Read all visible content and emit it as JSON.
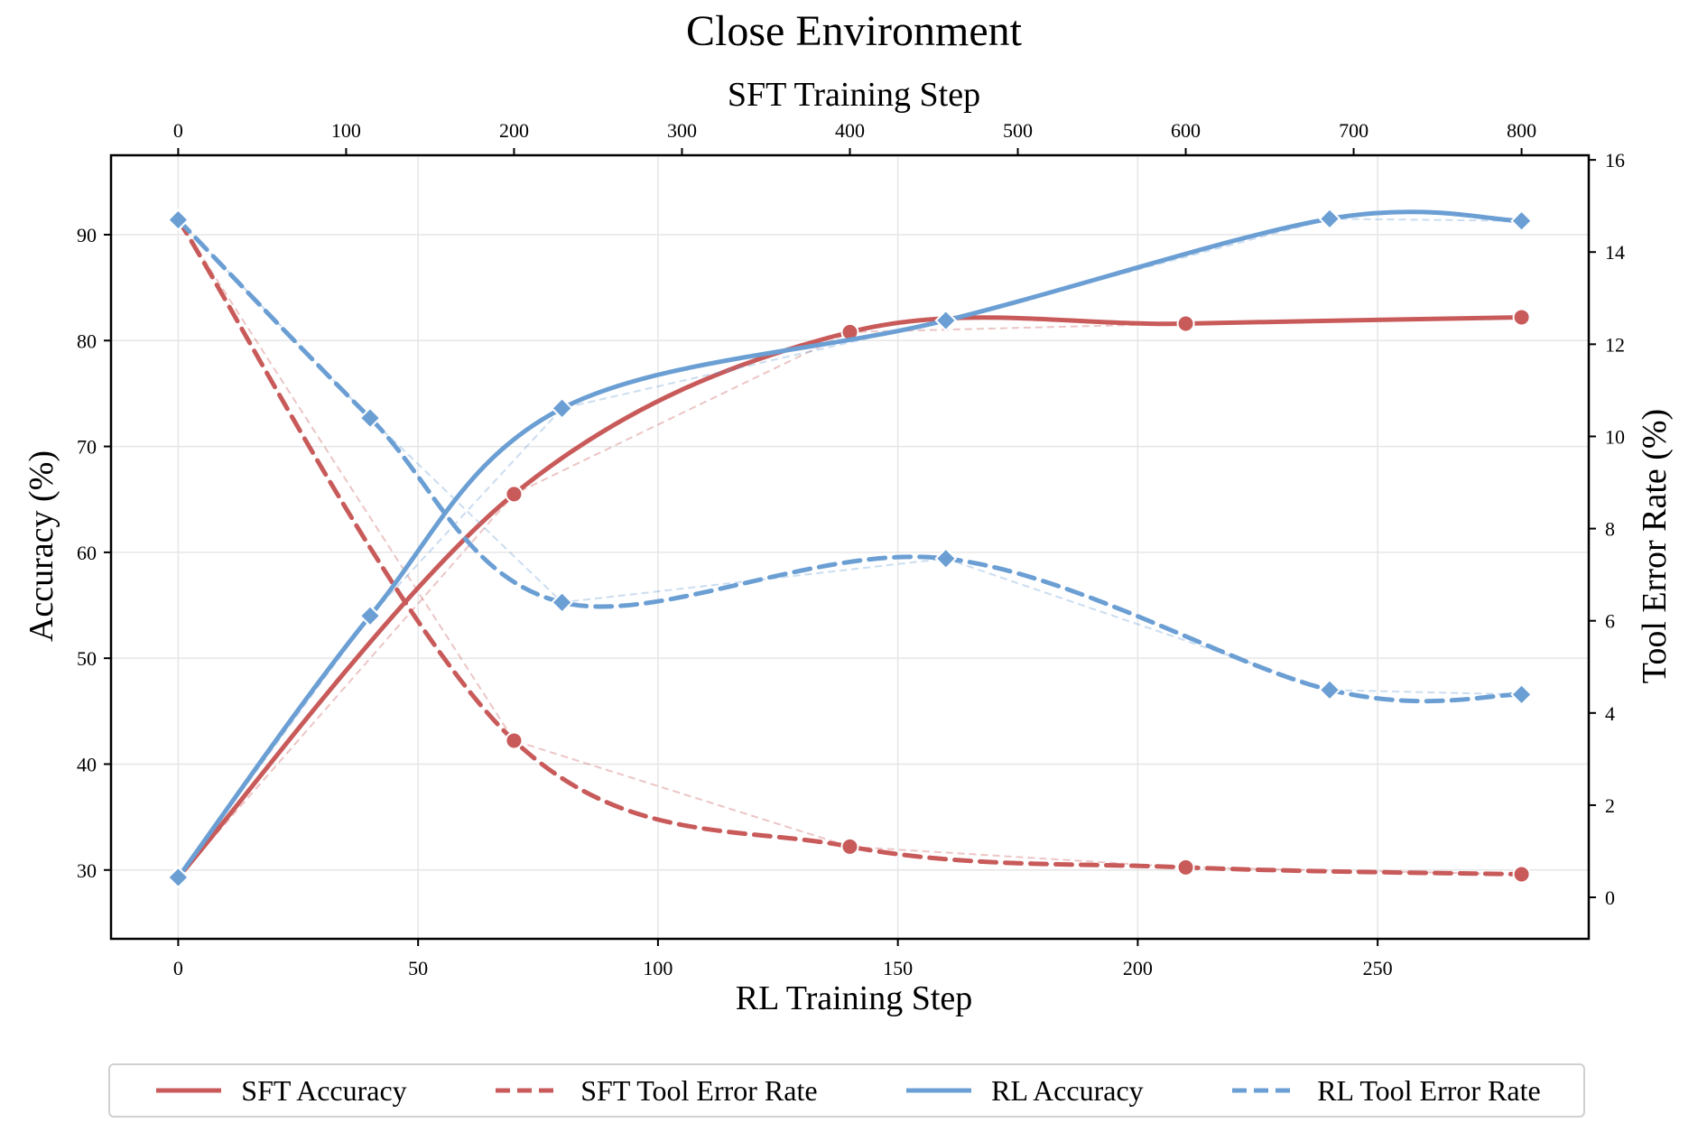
{
  "chart_data": {
    "type": "line",
    "title": "Close Environment",
    "top_xlabel": "SFT Training Step",
    "xlabel": "RL Training Step",
    "ylabel": "Accuracy (%)",
    "ylabel_right": "Tool Error Rate (%)",
    "x_bottom": {
      "lim": [
        -14,
        294
      ],
      "ticks": [
        0,
        50,
        100,
        150,
        200,
        250
      ]
    },
    "x_top": {
      "lim": [
        -40,
        840
      ],
      "ticks": [
        0,
        100,
        200,
        300,
        400,
        500,
        600,
        700,
        800
      ]
    },
    "y_left": {
      "lim": [
        23.5,
        97.5
      ],
      "ticks": [
        30,
        40,
        50,
        60,
        70,
        80,
        90
      ]
    },
    "y_right": {
      "lim": [
        -0.9,
        16.1
      ],
      "ticks": [
        0,
        2,
        4,
        6,
        8,
        10,
        12,
        14,
        16
      ]
    },
    "grid": true,
    "legend_position": "bottom",
    "series": [
      {
        "name": "SFT Accuracy",
        "x_axis": "top",
        "y_axis": "left",
        "style": "solid",
        "marker": "circle",
        "color": "#c85a5a",
        "x": [
          0,
          200,
          400,
          600,
          800
        ],
        "y": [
          29.3,
          65.5,
          80.8,
          81.6,
          82.2
        ]
      },
      {
        "name": "SFT Tool Error Rate",
        "x_axis": "top",
        "y_axis": "right",
        "style": "dashed",
        "marker": "circle",
        "color": "#c85a5a",
        "x": [
          0,
          200,
          400,
          600,
          800
        ],
        "y": [
          14.7,
          3.4,
          1.1,
          0.65,
          0.5
        ]
      },
      {
        "name": "RL Accuracy",
        "x_axis": "bottom",
        "y_axis": "left",
        "style": "solid",
        "marker": "diamond",
        "color": "#6b9fd4",
        "x": [
          0,
          40,
          80,
          160,
          240,
          280
        ],
        "y": [
          29.3,
          54.0,
          73.6,
          81.9,
          91.5,
          91.3
        ]
      },
      {
        "name": "RL Tool Error Rate",
        "x_axis": "bottom",
        "y_axis": "right",
        "style": "dashed",
        "marker": "diamond",
        "color": "#6b9fd4",
        "x": [
          0,
          40,
          80,
          160,
          240,
          280
        ],
        "y": [
          14.7,
          10.4,
          6.4,
          7.35,
          4.5,
          4.4
        ]
      }
    ]
  }
}
